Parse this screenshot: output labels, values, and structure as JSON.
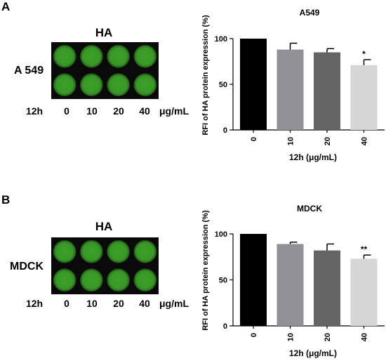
{
  "figure": {
    "panels": [
      {
        "letter": "A",
        "plate": {
          "title": "HA",
          "cell_line": "A 549",
          "time": "12h",
          "doses": [
            "0",
            "10",
            "20",
            "40"
          ],
          "unit": "μg/mL",
          "rows": 2,
          "cols": 4,
          "well_color": "#3ea82a"
        }
      },
      {
        "letter": "B",
        "plate": {
          "title": "HA",
          "cell_line": "MDCK",
          "time": "12h",
          "doses": [
            "0",
            "10",
            "20",
            "40"
          ],
          "unit": "μg/mL",
          "rows": 2,
          "cols": 4,
          "well_color": "#3ea82a"
        }
      }
    ]
  },
  "chart_data": [
    {
      "type": "bar",
      "title": "A549",
      "categories": [
        "0",
        "10",
        "20",
        "40"
      ],
      "values": [
        100,
        88,
        85,
        71
      ],
      "errors": [
        0,
        7,
        4,
        6
      ],
      "annotations": [
        "",
        "",
        "",
        "*"
      ],
      "colors": [
        "#000000",
        "#919096",
        "#646464",
        "#d6d6d6"
      ],
      "xlabel": "12h  (μg/mL)",
      "ylabel": "RFI of HA protein expression (%)",
      "ylim": [
        0,
        100
      ],
      "yticks": [
        "0",
        "50",
        "100"
      ],
      "grid": false
    },
    {
      "type": "bar",
      "title": "MDCK",
      "categories": [
        "0",
        "10",
        "20",
        "40"
      ],
      "values": [
        100,
        89,
        82,
        73
      ],
      "errors": [
        0,
        2,
        7,
        4
      ],
      "annotations": [
        "",
        "",
        "",
        "**"
      ],
      "colors": [
        "#000000",
        "#919096",
        "#646464",
        "#d6d6d6"
      ],
      "xlabel": "12h  (μg/mL)",
      "ylabel": "RFI of HA protein expression (%)",
      "ylim": [
        0,
        100
      ],
      "yticks": [
        "0",
        "50",
        "100"
      ],
      "grid": false
    }
  ]
}
